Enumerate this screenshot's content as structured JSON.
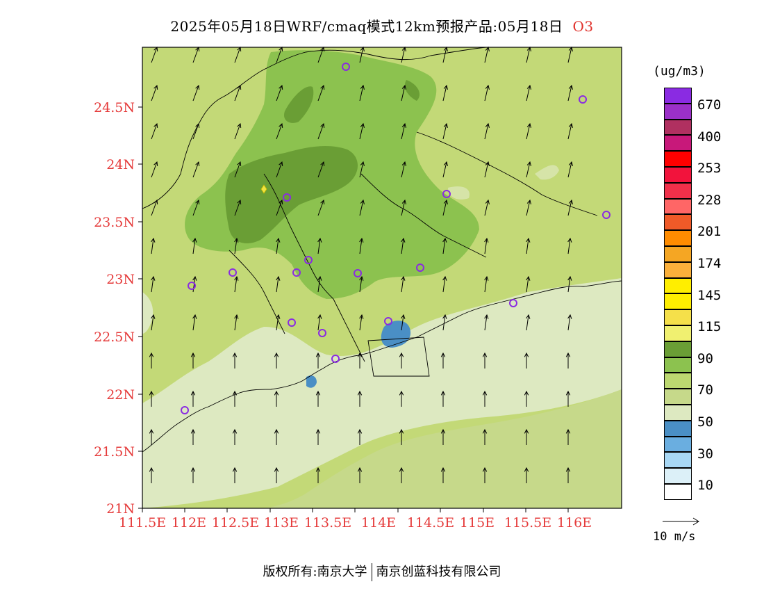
{
  "title": {
    "main": "2025年05月18日WRF/cmaq模式12km预报产品:05月18日",
    "pollutant": "O3"
  },
  "map": {
    "lat_labels": [
      "24.5N",
      "24N",
      "23.5N",
      "23N",
      "22.5N",
      "22N",
      "21.5N",
      "21N"
    ],
    "lon_labels": [
      "111.5E",
      "112E",
      "112.5E",
      "113E",
      "113.5E",
      "114E",
      "114.5E",
      "115E",
      "115.5E",
      "116E"
    ],
    "colors": {
      "light_green": "#c3d977",
      "mid_green": "#8cc24f",
      "dark_green": "#6a9e35",
      "pale": "#dde9c1",
      "olive": "#c6d98a",
      "blue": "#4a8fc5",
      "station": "#8a2be2",
      "marker": "#f0e442"
    }
  },
  "legend": {
    "unit": "(ug/m3)",
    "bins": [
      {
        "color": "#8a2be2"
      },
      {
        "color": "#9b30c8"
      },
      {
        "color": "#b03060"
      },
      {
        "color": "#c8187a"
      },
      {
        "color": "#ff0000"
      },
      {
        "color": "#f2133c"
      },
      {
        "color": "#f0304a"
      },
      {
        "color": "#ff6666"
      },
      {
        "color": "#f05a28"
      },
      {
        "color": "#ff8c00"
      },
      {
        "color": "#f5a623"
      },
      {
        "color": "#fbb03b"
      },
      {
        "color": "#ffee00"
      },
      {
        "color": "#ffee00"
      },
      {
        "color": "#f5e04a"
      },
      {
        "color": "#f0f070"
      },
      {
        "color": "#6a9e35"
      },
      {
        "color": "#8cc24f"
      },
      {
        "color": "#bcd870"
      },
      {
        "color": "#c6d98a"
      },
      {
        "color": "#dde9c1"
      },
      {
        "color": "#4a8fc5"
      },
      {
        "color": "#6aaee0"
      },
      {
        "color": "#a8d8f5"
      },
      {
        "color": "#dcf0f8"
      },
      {
        "color": "#ffffff"
      }
    ],
    "labels": [
      "670",
      "400",
      "253",
      "228",
      "201",
      "174",
      "145",
      "115",
      "90",
      "70",
      "50",
      "30",
      "10"
    ]
  },
  "wind_key": {
    "label": "10 m/s"
  },
  "footer": {
    "left": "版权所有:南京大学",
    "right": "南京创蓝科技有限公司"
  }
}
